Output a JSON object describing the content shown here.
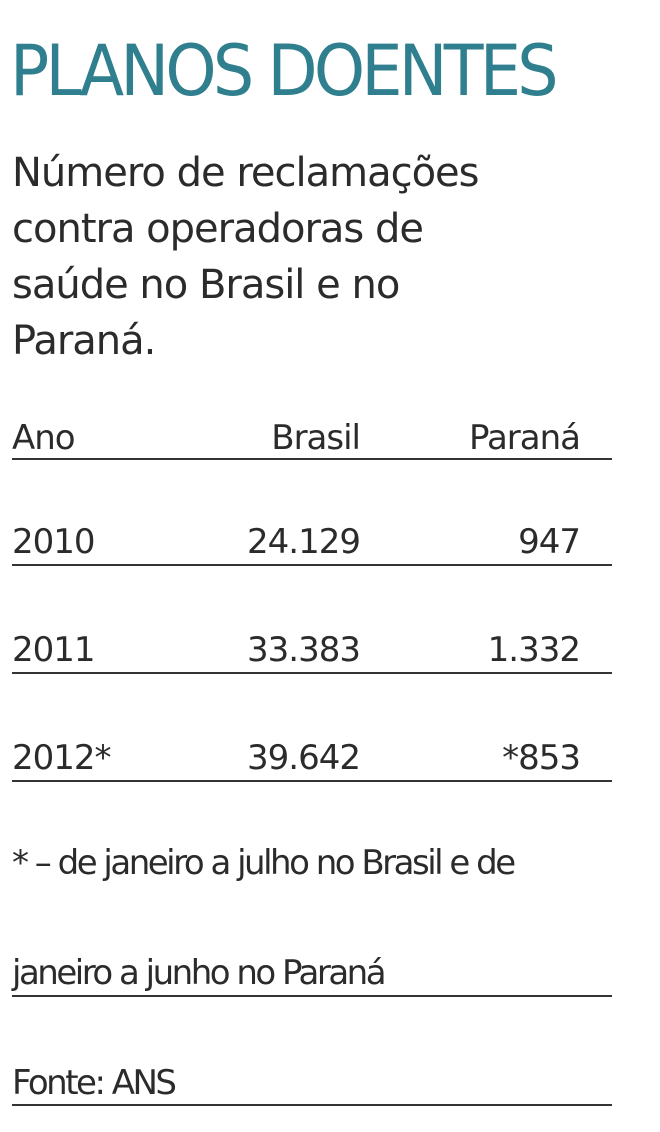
{
  "header": {
    "title": "PLANOS DOENTES",
    "subtitle": [
      "Número de reclamações",
      "contra operadoras de",
      "saúde no Brasil e no",
      "Paraná."
    ]
  },
  "table": {
    "columns": [
      "Ano",
      "Brasil",
      "Paraná"
    ],
    "rows": [
      [
        "2010",
        "24.129",
        "947"
      ],
      [
        "2011",
        "33.383",
        "1.332"
      ],
      [
        "2012*",
        "39.642",
        "*853"
      ]
    ]
  },
  "footnote": [
    "* – de janeiro a julho no Brasil e de",
    "janeiro a junho no Paraná"
  ],
  "source": "Fonte: ANS"
}
